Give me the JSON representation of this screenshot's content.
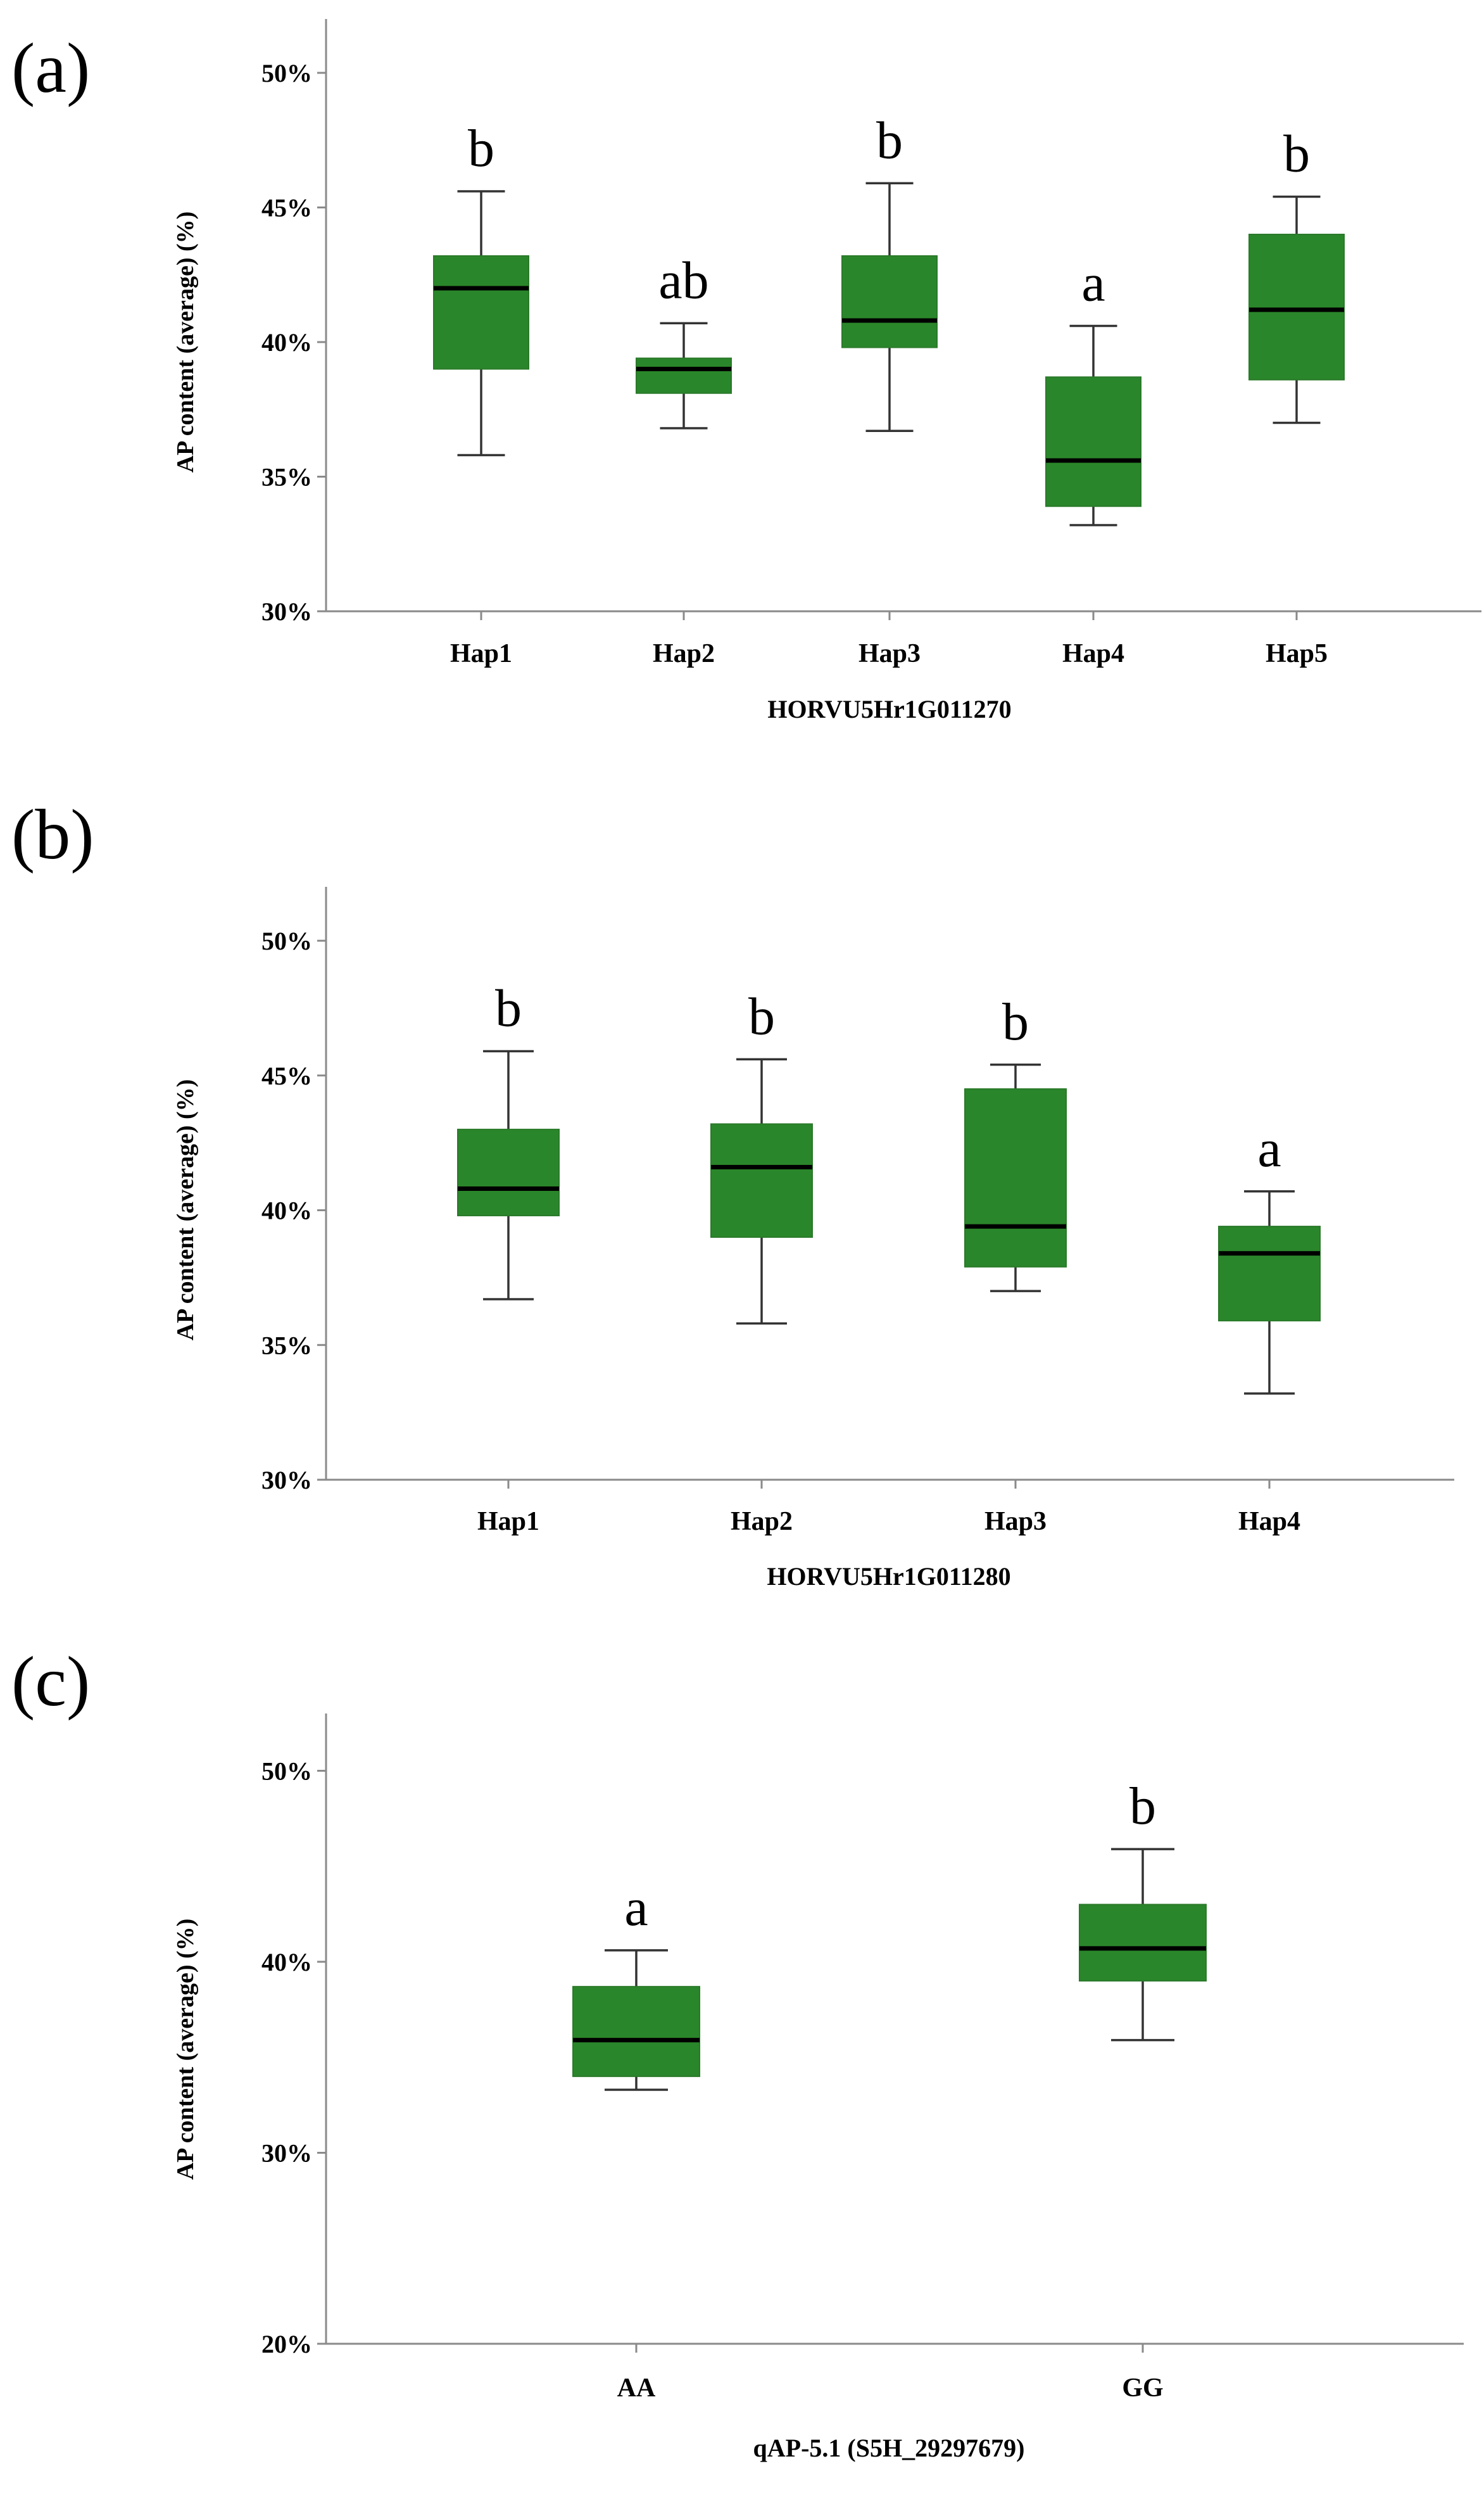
{
  "chart_data": [
    {
      "type": "box",
      "panel_label": "(a)",
      "xlabel": "HORVU5Hr1G011270",
      "ylabel": "AP content (average) (%)",
      "ylim": [
        30,
        52
      ],
      "yticks": [
        30,
        35,
        40,
        45,
        50
      ],
      "ytick_labels": [
        "30%",
        "35%",
        "40%",
        "45%",
        "50%"
      ],
      "box_color": "#2a862a",
      "categories": [
        "Hap1",
        "Hap2",
        "Hap3",
        "Hap4",
        "Hap5"
      ],
      "boxes": [
        {
          "min": 35.8,
          "q1": 39.0,
          "median": 42.0,
          "q3": 43.2,
          "max": 45.6,
          "letter": "b"
        },
        {
          "min": 36.8,
          "q1": 38.1,
          "median": 39.0,
          "q3": 39.4,
          "max": 40.7,
          "letter": "ab"
        },
        {
          "min": 36.7,
          "q1": 39.8,
          "median": 40.8,
          "q3": 43.2,
          "max": 45.9,
          "letter": "b"
        },
        {
          "min": 33.2,
          "q1": 33.9,
          "median": 35.6,
          "q3": 38.7,
          "max": 40.6,
          "letter": "a"
        },
        {
          "min": 37.0,
          "q1": 38.6,
          "median": 41.2,
          "q3": 44.0,
          "max": 45.4,
          "letter": "b"
        }
      ]
    },
    {
      "type": "box",
      "panel_label": "(b)",
      "xlabel": "HORVU5Hr1G011280",
      "ylabel": "AP content (average) (%)",
      "ylim": [
        30,
        52
      ],
      "yticks": [
        30,
        35,
        40,
        45,
        50
      ],
      "ytick_labels": [
        "30%",
        "35%",
        "40%",
        "45%",
        "50%"
      ],
      "box_color": "#2a862a",
      "categories": [
        "Hap1",
        "Hap2",
        "Hap3",
        "Hap4"
      ],
      "boxes": [
        {
          "min": 36.7,
          "q1": 39.8,
          "median": 40.8,
          "q3": 43.0,
          "max": 45.9,
          "letter": "b"
        },
        {
          "min": 35.8,
          "q1": 39.0,
          "median": 41.6,
          "q3": 43.2,
          "max": 45.6,
          "letter": "b"
        },
        {
          "min": 37.0,
          "q1": 37.9,
          "median": 39.4,
          "q3": 44.5,
          "max": 45.4,
          "letter": "b"
        },
        {
          "min": 33.2,
          "q1": 35.9,
          "median": 38.4,
          "q3": 39.4,
          "max": 40.7,
          "letter": "a"
        }
      ]
    },
    {
      "type": "box",
      "panel_label": "(c)",
      "xlabel": "qAP-5.1 (S5H_29297679)",
      "ylabel": "AP content (average) (%)",
      "ylim": [
        20,
        53
      ],
      "yticks": [
        20,
        30,
        40,
        50
      ],
      "ytick_labels": [
        "20%",
        "30%",
        "40%",
        "50%"
      ],
      "box_color": "#2a862a",
      "categories": [
        "AA",
        "GG"
      ],
      "boxes": [
        {
          "min": 33.3,
          "q1": 34.0,
          "median": 35.9,
          "q3": 38.7,
          "max": 40.6,
          "letter": "a"
        },
        {
          "min": 35.9,
          "q1": 39.0,
          "median": 40.7,
          "q3": 43.0,
          "max": 45.9,
          "letter": "b"
        }
      ]
    }
  ]
}
